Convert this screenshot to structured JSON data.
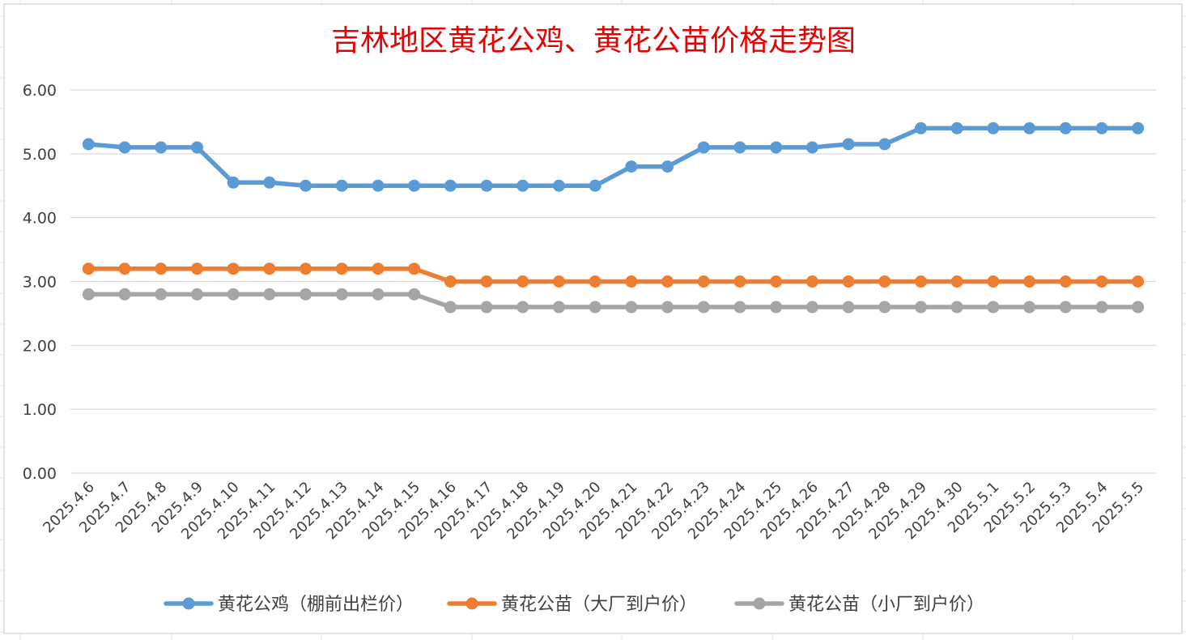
{
  "chart_data": {
    "type": "line",
    "title": "吉林地区黄花公鸡、黄花公苗价格走势图",
    "xlabel": "",
    "ylabel": "",
    "ylim": [
      0,
      6
    ],
    "y_ticks": [
      "0.00",
      "1.00",
      "2.00",
      "3.00",
      "4.00",
      "5.00",
      "6.00"
    ],
    "grid": true,
    "legend_position": "bottom",
    "categories": [
      "2025.4.6",
      "2025.4.7",
      "2025.4.8",
      "2025.4.9",
      "2025.4.10",
      "2025.4.11",
      "2025.4.12",
      "2025.4.13",
      "2025.4.14",
      "2025.4.15",
      "2025.4.16",
      "2025.4.17",
      "2025.4.18",
      "2025.4.19",
      "2025.4.20",
      "2025.4.21",
      "2025.4.22",
      "2025.4.23",
      "2025.4.24",
      "2025.4.25",
      "2025.4.26",
      "2025.4.27",
      "2025.4.28",
      "2025.4.29",
      "2025.4.30",
      "2025.5.1",
      "2025.5.2",
      "2025.5.3",
      "2025.5.4",
      "2025.5.5"
    ],
    "series": [
      {
        "name": "黄花公鸡（棚前出栏价）",
        "color": "#5b9bd5",
        "values": [
          5.15,
          5.1,
          5.1,
          5.1,
          4.55,
          4.55,
          4.5,
          4.5,
          4.5,
          4.5,
          4.5,
          4.5,
          4.5,
          4.5,
          4.5,
          4.8,
          4.8,
          5.1,
          5.1,
          5.1,
          5.1,
          5.15,
          5.15,
          5.4,
          5.4,
          5.4,
          5.4,
          5.4,
          5.4,
          5.4
        ]
      },
      {
        "name": "黄花公苗（大厂到户价）",
        "color": "#ed7d31",
        "values": [
          3.2,
          3.2,
          3.2,
          3.2,
          3.2,
          3.2,
          3.2,
          3.2,
          3.2,
          3.2,
          3.0,
          3.0,
          3.0,
          3.0,
          3.0,
          3.0,
          3.0,
          3.0,
          3.0,
          3.0,
          3.0,
          3.0,
          3.0,
          3.0,
          3.0,
          3.0,
          3.0,
          3.0,
          3.0,
          3.0
        ]
      },
      {
        "name": "黄花公苗（小厂到户价）",
        "color": "#a5a5a5",
        "values": [
          2.8,
          2.8,
          2.8,
          2.8,
          2.8,
          2.8,
          2.8,
          2.8,
          2.8,
          2.8,
          2.6,
          2.6,
          2.6,
          2.6,
          2.6,
          2.6,
          2.6,
          2.6,
          2.6,
          2.6,
          2.6,
          2.6,
          2.6,
          2.6,
          2.6,
          2.6,
          2.6,
          2.6,
          2.6,
          2.6
        ]
      }
    ]
  }
}
